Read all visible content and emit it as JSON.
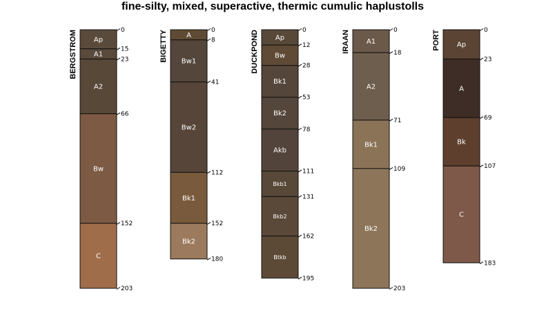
{
  "title": "fine-silty, mixed, superactive, thermic cumulic haplustolls",
  "profiles": [
    {
      "name": "BERGSTROM",
      "horizons": [
        {
          "name": "Ap",
          "top": 0,
          "bottom": 15,
          "color": "#5a4a3c"
        },
        {
          "name": "A1",
          "top": 15,
          "bottom": 23,
          "color": "#5a4a3c"
        },
        {
          "name": "A2",
          "top": 23,
          "bottom": 66,
          "color": "#574838"
        },
        {
          "name": "Bw",
          "top": 66,
          "bottom": 152,
          "color": "#7d5a43"
        },
        {
          "name": "C",
          "top": 152,
          "bottom": 203,
          "color": "#a06d4a"
        }
      ]
    },
    {
      "name": "BIGETTY",
      "horizons": [
        {
          "name": "A",
          "top": 0,
          "bottom": 8,
          "color": "#5f4a33"
        },
        {
          "name": "Bw1",
          "top": 8,
          "bottom": 41,
          "color": "#54463a"
        },
        {
          "name": "Bw2",
          "top": 41,
          "bottom": 112,
          "color": "#564538"
        },
        {
          "name": "Bk1",
          "top": 112,
          "bottom": 152,
          "color": "#7a5a3c"
        },
        {
          "name": "Bk2",
          "top": 152,
          "bottom": 180,
          "color": "#9c7a5d"
        }
      ]
    },
    {
      "name": "DUCKPOND",
      "horizons": [
        {
          "name": "Ap",
          "top": 0,
          "bottom": 12,
          "color": "#574838"
        },
        {
          "name": "Bw",
          "top": 12,
          "bottom": 28,
          "color": "#5e4a35"
        },
        {
          "name": "Bk1",
          "top": 28,
          "bottom": 53,
          "color": "#54463a"
        },
        {
          "name": "Bk2",
          "top": 53,
          "bottom": 78,
          "color": "#54463a"
        },
        {
          "name": "Akb",
          "top": 78,
          "bottom": 111,
          "color": "#52443a"
        },
        {
          "name": "Bkb1",
          "top": 111,
          "bottom": 131,
          "color": "#574838"
        },
        {
          "name": "Bkb2",
          "top": 131,
          "bottom": 162,
          "color": "#5a4838"
        },
        {
          "name": "Btkb",
          "top": 162,
          "bottom": 195,
          "color": "#5c4a37"
        }
      ]
    },
    {
      "name": "IRAAN",
      "horizons": [
        {
          "name": "A1",
          "top": 0,
          "bottom": 18,
          "color": "#6b5a4a"
        },
        {
          "name": "A2",
          "top": 18,
          "bottom": 71,
          "color": "#6e5e4e"
        },
        {
          "name": "Bk1",
          "top": 71,
          "bottom": 109,
          "color": "#8b7358"
        },
        {
          "name": "Bk2",
          "top": 109,
          "bottom": 203,
          "color": "#8d755a"
        }
      ]
    },
    {
      "name": "PORT",
      "horizons": [
        {
          "name": "Ap",
          "top": 0,
          "bottom": 23,
          "color": "#5b4434"
        },
        {
          "name": "A",
          "top": 23,
          "bottom": 69,
          "color": "#3e2d26"
        },
        {
          "name": "Bk",
          "top": 69,
          "bottom": 107,
          "color": "#5e3f2e"
        },
        {
          "name": "C",
          "top": 107,
          "bottom": 183,
          "color": "#7e5848"
        }
      ]
    }
  ]
}
